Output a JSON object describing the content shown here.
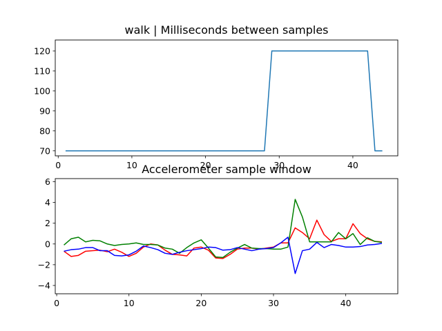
{
  "chart_data": [
    {
      "type": "line",
      "title": "walk | Milliseconds between samples",
      "xlabel": "",
      "ylabel": "",
      "xlim": [
        -0.4,
        46.1
      ],
      "ylim": [
        67.5,
        125.5
      ],
      "xticks": [
        0,
        10,
        20,
        30,
        40
      ],
      "yticks": [
        70,
        80,
        90,
        100,
        110,
        120
      ],
      "grid": false,
      "series": [
        {
          "color": "#1f77b4",
          "x": [
            1,
            2,
            3,
            4,
            5,
            6,
            7,
            8,
            9,
            10,
            11,
            12,
            13,
            14,
            15,
            16,
            17,
            18,
            19,
            20,
            21,
            22,
            23,
            24,
            25,
            26,
            27,
            28,
            29,
            30,
            31,
            32,
            33,
            34,
            35,
            36,
            37,
            38,
            39,
            40,
            41,
            42,
            43,
            44
          ],
          "values": [
            70,
            70,
            70,
            70,
            70,
            70,
            70,
            70,
            70,
            70,
            70,
            70,
            70,
            70,
            70,
            70,
            70,
            70,
            70,
            70,
            70,
            70,
            70,
            70,
            70,
            70,
            70,
            70,
            120,
            120,
            120,
            120,
            120,
            120,
            120,
            120,
            120,
            120,
            120,
            120,
            120,
            120,
            70,
            70
          ]
        }
      ]
    },
    {
      "type": "line",
      "title": "Accelerometer sample window",
      "xlabel": "",
      "ylabel": "",
      "xlim": [
        -0.2,
        47.2
      ],
      "ylim": [
        -4.8,
        6.3
      ],
      "xticks": [
        0,
        10,
        20,
        30,
        40
      ],
      "yticks": [
        -4,
        -2,
        0,
        2,
        4,
        6
      ],
      "grid": false,
      "series": [
        {
          "color": "#ff0000",
          "x": [
            1,
            2,
            3,
            4,
            5,
            6,
            7,
            8,
            9,
            10,
            11,
            12,
            13,
            14,
            15,
            16,
            17,
            18,
            19,
            20,
            21,
            22,
            23,
            24,
            25,
            26,
            27,
            28,
            29,
            30,
            31,
            32,
            33,
            34,
            35,
            36,
            37,
            38,
            39,
            40,
            41,
            42,
            43,
            44,
            45
          ],
          "values": [
            -0.7,
            -1.2,
            -1.1,
            -0.7,
            -0.65,
            -0.6,
            -0.75,
            -0.5,
            -0.8,
            -1.2,
            -0.9,
            -0.3,
            0.0,
            -0.1,
            -0.6,
            -1.0,
            -1.05,
            -1.15,
            -0.4,
            -0.3,
            -0.6,
            -1.35,
            -1.4,
            -1.0,
            -0.5,
            -0.4,
            -0.4,
            -0.5,
            -0.4,
            -0.3,
            0.1,
            0.1,
            1.55,
            1.1,
            0.5,
            2.3,
            0.9,
            0.25,
            0.5,
            0.5,
            1.95,
            1.0,
            0.5,
            0.25,
            0.2
          ]
        },
        {
          "color": "#008000",
          "x": [
            1,
            2,
            3,
            4,
            5,
            6,
            7,
            8,
            9,
            10,
            11,
            12,
            13,
            14,
            15,
            16,
            17,
            18,
            19,
            20,
            21,
            22,
            23,
            24,
            25,
            26,
            27,
            28,
            29,
            30,
            31,
            32,
            33,
            34,
            35,
            36,
            37,
            38,
            39,
            40,
            41,
            42,
            43,
            44,
            45
          ],
          "values": [
            -0.1,
            0.5,
            0.65,
            0.2,
            0.35,
            0.3,
            0.0,
            -0.15,
            -0.05,
            0.0,
            0.1,
            -0.05,
            -0.05,
            -0.1,
            -0.4,
            -0.5,
            -0.9,
            -0.35,
            0.1,
            0.4,
            -0.4,
            -1.25,
            -1.3,
            -0.8,
            -0.4,
            -0.05,
            -0.4,
            -0.45,
            -0.45,
            -0.5,
            -0.5,
            -0.3,
            4.3,
            2.6,
            0.2,
            0.2,
            0.2,
            0.2,
            1.1,
            0.5,
            1.0,
            -0.05,
            0.6,
            0.25,
            0.15
          ]
        },
        {
          "color": "#0000ff",
          "x": [
            1,
            2,
            3,
            4,
            5,
            6,
            7,
            8,
            9,
            10,
            11,
            12,
            13,
            14,
            15,
            16,
            17,
            18,
            19,
            20,
            21,
            22,
            23,
            24,
            25,
            26,
            27,
            28,
            29,
            30,
            31,
            32,
            33,
            34,
            35,
            36,
            37,
            38,
            39,
            40,
            41,
            42,
            43,
            44,
            45
          ],
          "values": [
            -0.7,
            -0.55,
            -0.5,
            -0.35,
            -0.35,
            -0.65,
            -0.65,
            -1.1,
            -1.15,
            -1.05,
            -0.7,
            -0.2,
            -0.35,
            -0.55,
            -0.9,
            -1.0,
            -0.8,
            -0.65,
            -0.55,
            -0.45,
            -0.3,
            -0.35,
            -0.6,
            -0.55,
            -0.35,
            -0.5,
            -0.65,
            -0.5,
            -0.45,
            -0.35,
            0.1,
            0.65,
            -2.85,
            -0.65,
            -0.5,
            0.15,
            -0.35,
            -0.05,
            -0.15,
            -0.3,
            -0.3,
            -0.25,
            -0.1,
            -0.05,
            0.05
          ]
        }
      ]
    }
  ]
}
